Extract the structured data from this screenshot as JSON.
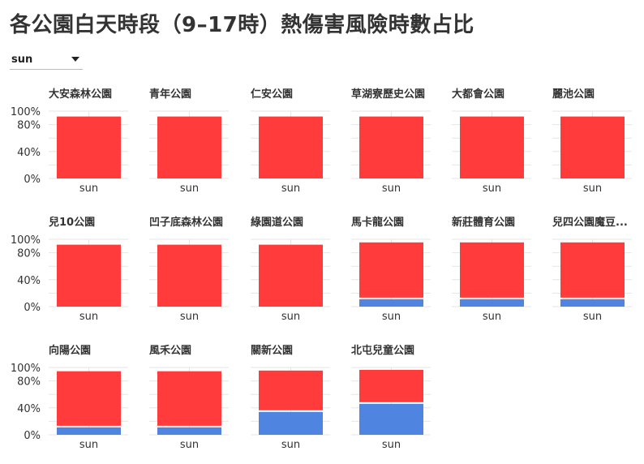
{
  "title": "各公園白天時段（9–17時）熱傷害風險時數占比",
  "dropdown": {
    "selected": "sun"
  },
  "colors": {
    "high_risk": "#ff3b3b",
    "low_risk": "#4f84e0",
    "grid": "#e6e6e6",
    "axis_text": "#333333"
  },
  "chart_data": {
    "type": "bar",
    "stacked": true,
    "categories": [
      "sun"
    ],
    "ylim": [
      0,
      1
    ],
    "yticks": [
      "0%",
      "40%",
      "80%",
      "100%"
    ],
    "grid": true,
    "panels": [
      {
        "name": "大安森林公園",
        "low": 0,
        "high": 0.92
      },
      {
        "name": "青年公園",
        "low": 0,
        "high": 0.92
      },
      {
        "name": "仁安公園",
        "low": 0,
        "high": 0.92
      },
      {
        "name": "草湖寮歷史公園",
        "low": 0,
        "high": 0.92
      },
      {
        "name": "大都會公園",
        "low": 0,
        "high": 0.92
      },
      {
        "name": "麗池公園",
        "low": 0,
        "high": 0.92
      },
      {
        "name": "兒10公園",
        "low": 0,
        "high": 0.92
      },
      {
        "name": "凹子底森林公園",
        "low": 0,
        "high": 0.92
      },
      {
        "name": "綠園道公園",
        "low": 0,
        "high": 0.92
      },
      {
        "name": "馬卡龍公園",
        "low": 0.11,
        "high": 0.82
      },
      {
        "name": "新莊體育公園",
        "low": 0.11,
        "high": 0.82
      },
      {
        "name": "兒四公園魔豆...",
        "low": 0.11,
        "high": 0.82
      },
      {
        "name": "向陽公園",
        "low": 0.11,
        "high": 0.81
      },
      {
        "name": "風禾公園",
        "low": 0.11,
        "high": 0.81
      },
      {
        "name": "關新公園",
        "low": 0.34,
        "high": 0.59
      },
      {
        "name": "北屯兒童公園",
        "low": 0.46,
        "high": 0.48
      }
    ]
  }
}
